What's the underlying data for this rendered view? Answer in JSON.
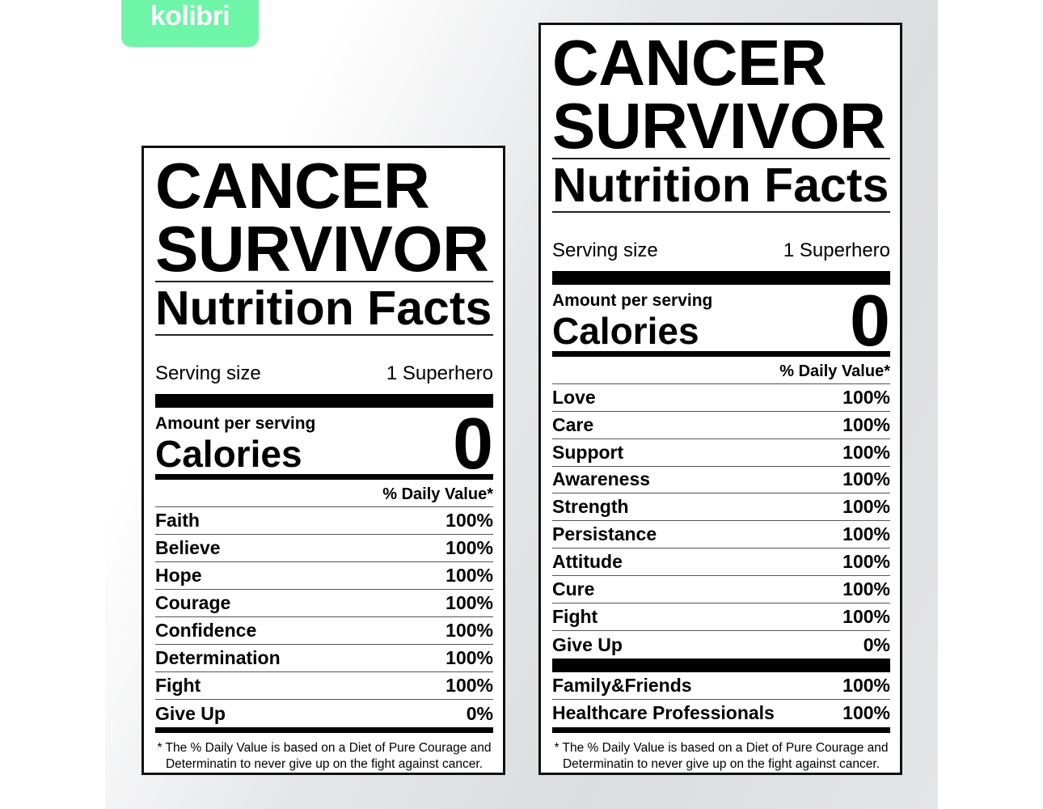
{
  "logo": "kolibri",
  "colors": {
    "logo": "#6ef5a8"
  },
  "cards": [
    {
      "title1": "CANCER",
      "title2": "SURVIVOR",
      "subtitle": "Nutrition Facts",
      "serving_label": "Serving size",
      "serving_value": "1 Superhero",
      "amount_label": "Amount per serving",
      "calories_label": "Calories",
      "calories_value": "0",
      "dv_header": "% Daily Value*",
      "groups": [
        [
          {
            "name": "Faith",
            "value": "100%"
          },
          {
            "name": "Believe",
            "value": "100%"
          },
          {
            "name": "Hope",
            "value": "100%"
          },
          {
            "name": "Courage",
            "value": "100%"
          },
          {
            "name": "Confidence",
            "value": "100%"
          },
          {
            "name": "Determination",
            "value": "100%"
          },
          {
            "name": "Fight",
            "value": "100%"
          },
          {
            "name": "Give Up",
            "value": "0%"
          }
        ]
      ],
      "footnote_1": "* The % Daily Value is based on a Diet of Pure Courage and",
      "footnote_2": "Determinatin to never give up on the fight against cancer."
    },
    {
      "title1": "CANCER",
      "title2": "SURVIVOR",
      "subtitle": "Nutrition Facts",
      "serving_label": "Serving size",
      "serving_value": "1 Superhero",
      "amount_label": "Amount per serving",
      "calories_label": "Calories",
      "calories_value": "0",
      "dv_header": "% Daily Value*",
      "groups": [
        [
          {
            "name": "Love",
            "value": "100%"
          },
          {
            "name": "Care",
            "value": "100%"
          },
          {
            "name": "Support",
            "value": "100%"
          },
          {
            "name": "Awareness",
            "value": "100%"
          },
          {
            "name": "Strength",
            "value": "100%"
          },
          {
            "name": "Persistance",
            "value": "100%"
          },
          {
            "name": "Attitude",
            "value": "100%"
          },
          {
            "name": "Cure",
            "value": "100%"
          },
          {
            "name": "Fight",
            "value": "100%"
          },
          {
            "name": "Give Up",
            "value": "0%"
          }
        ],
        [
          {
            "name": "Family&Friends",
            "value": "100%"
          },
          {
            "name": "Healthcare Professionals",
            "value": "100%"
          }
        ]
      ],
      "footnote_1": "* The % Daily Value is based on a Diet of Pure Courage and",
      "footnote_2": "Determinatin to never give up on the fight against cancer."
    }
  ]
}
